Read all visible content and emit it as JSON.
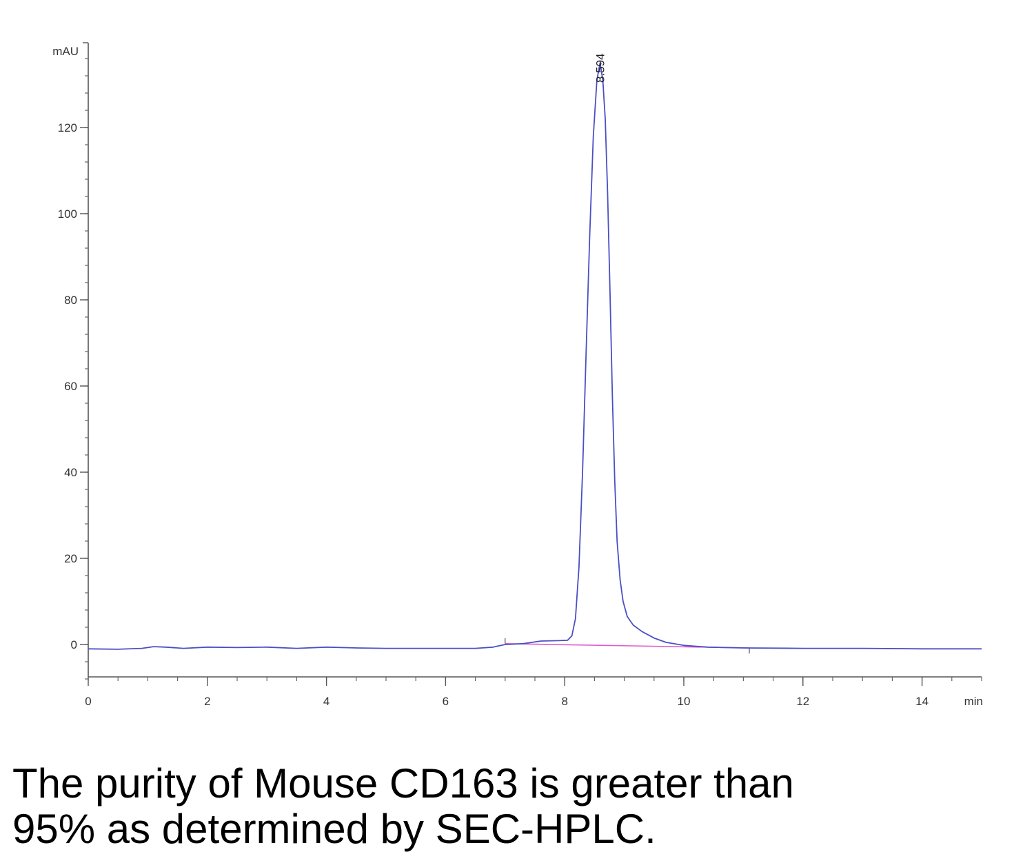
{
  "chart_data": {
    "type": "line",
    "y_unit": "mAU",
    "x_unit": "min",
    "xlim": [
      0,
      15
    ],
    "ylim": [
      -8,
      140
    ],
    "x_ticks": [
      0,
      2,
      4,
      6,
      8,
      10,
      12,
      14
    ],
    "y_ticks": [
      0,
      20,
      40,
      60,
      80,
      100,
      120
    ],
    "grid": false,
    "peak_annotation": "8.594",
    "series": [
      {
        "color": "#4a4fc4",
        "x": [
          0,
          0.5,
          0.9,
          1.1,
          1.3,
          1.6,
          2.0,
          2.5,
          3.0,
          3.5,
          4.0,
          4.5,
          5.0,
          5.5,
          6.0,
          6.5,
          6.8,
          7.0,
          7.3,
          7.6,
          7.9,
          8.05,
          8.12,
          8.18,
          8.24,
          8.3,
          8.36,
          8.42,
          8.48,
          8.54,
          8.594,
          8.64,
          8.68,
          8.72,
          8.76,
          8.8,
          8.84,
          8.88,
          8.93,
          8.98,
          9.05,
          9.15,
          9.3,
          9.5,
          9.7,
          10.0,
          10.4,
          11.0,
          12.0,
          13.0,
          14.0,
          15.0
        ],
        "y": [
          -1,
          -1.1,
          -0.9,
          -0.5,
          -0.6,
          -0.9,
          -0.6,
          -0.7,
          -0.6,
          -0.9,
          -0.6,
          -0.8,
          -0.9,
          -0.9,
          -0.9,
          -0.9,
          -0.6,
          0.0,
          0.2,
          0.8,
          0.9,
          1.0,
          2.0,
          6.0,
          18.0,
          40.0,
          68.0,
          95.0,
          118.0,
          131.0,
          135.0,
          131.0,
          122.0,
          105.0,
          82.0,
          58.0,
          38.0,
          24.0,
          15.0,
          10.0,
          6.5,
          4.5,
          3.0,
          1.5,
          0.5,
          -0.2,
          -0.6,
          -0.8,
          -0.9,
          -0.9,
          -1.0,
          -1.0
        ]
      }
    ],
    "baseline": {
      "color": "#e05ad0",
      "x": [
        7.0,
        11.1
      ],
      "y": [
        0.2,
        -0.8
      ]
    }
  },
  "caption": {
    "line1": "The purity of Mouse CD163 is greater than",
    "line2": "95% as determined by SEC-HPLC."
  }
}
